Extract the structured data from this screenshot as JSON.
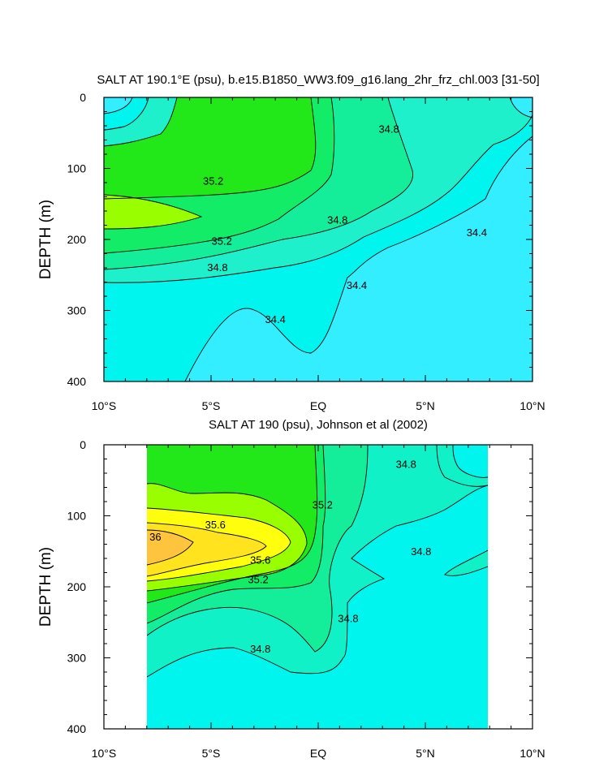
{
  "chart_data": [
    {
      "type": "contour",
      "title": "SALT AT 190.1°E (psu), b.e15.B1850_WW3.f09_g16.lang_2hr_frz_chl.003 [31-50]",
      "ylabel": "DEPTH (m)",
      "xlim": [
        -10,
        10
      ],
      "ylim": [
        0,
        400
      ],
      "y_inverted": true,
      "x_ticks": [
        {
          "value": -10,
          "label": "10°S"
        },
        {
          "value": -5,
          "label": "5°S"
        },
        {
          "value": 0,
          "label": "EQ"
        },
        {
          "value": 5,
          "label": "5°N"
        },
        {
          "value": 10,
          "label": "10°N"
        }
      ],
      "y_ticks": [
        0,
        100,
        200,
        300,
        400
      ],
      "levels": [
        34.4,
        34.6,
        34.8,
        35.0,
        35.2,
        35.4
      ],
      "fill_colors": {
        "below_34.4": "#33eeff",
        "34.4-34.6": "#00f5ee",
        "34.6-34.8": "#1ef0cc",
        "34.8-35.0": "#14ee9a",
        "35.0-35.2": "#12ec66",
        "35.2-35.4": "#22e81a",
        "above_35.4": "#99ff00"
      },
      "contour_labels": [
        {
          "text": "35.2",
          "x": -4.9,
          "y": 118
        },
        {
          "text": "35.2",
          "x": -4.5,
          "y": 203
        },
        {
          "text": "34.8",
          "x": -4.7,
          "y": 240
        },
        {
          "text": "34.8",
          "x": 3.3,
          "y": 45
        },
        {
          "text": "34.8",
          "x": 0.9,
          "y": 173
        },
        {
          "text": "34.4",
          "x": 7.4,
          "y": 191
        },
        {
          "text": "34.4",
          "x": 1.8,
          "y": 265
        },
        {
          "text": "34.4",
          "x": -2.0,
          "y": 313
        }
      ],
      "grid": false
    },
    {
      "type": "contour",
      "title": "SALT AT 190 (psu), Johnson et al (2002)",
      "ylabel": "DEPTH (m)",
      "xlim": [
        -10,
        10
      ],
      "ylim": [
        0,
        400
      ],
      "y_inverted": true,
      "data_extent_x": [
        -8,
        8
      ],
      "x_ticks": [
        {
          "value": -10,
          "label": "10°S"
        },
        {
          "value": -5,
          "label": "5°S"
        },
        {
          "value": 0,
          "label": "EQ"
        },
        {
          "value": 5,
          "label": "5°N"
        },
        {
          "value": 10,
          "label": "10°N"
        }
      ],
      "y_ticks": [
        0,
        100,
        200,
        300,
        400
      ],
      "levels": [
        34.6,
        34.8,
        35.0,
        35.2,
        35.4,
        35.6,
        35.8,
        36.0
      ],
      "fill_colors": {
        "below_34.6": "#00f5ee",
        "34.6-34.8": "#11f1c8",
        "34.8-35.0": "#14ee9a",
        "35.0-35.2": "#12ec66",
        "35.2-35.4": "#22e81a",
        "35.4-35.6": "#99ff00",
        "35.6-35.8": "#ffff0d",
        "35.8-36.0": "#ffe31f",
        "above_36.0": "#ffc43d"
      },
      "contour_labels": [
        {
          "text": "35.6",
          "x": -4.8,
          "y": 113
        },
        {
          "text": "36",
          "x": -7.6,
          "y": 130
        },
        {
          "text": "35.6",
          "x": -2.7,
          "y": 163
        },
        {
          "text": "35.2",
          "x": -2.8,
          "y": 190
        },
        {
          "text": "35.2",
          "x": 0.2,
          "y": 85
        },
        {
          "text": "34.8",
          "x": 4.1,
          "y": 28
        },
        {
          "text": "34.8",
          "x": 4.8,
          "y": 151
        },
        {
          "text": "34.8",
          "x": 1.4,
          "y": 245
        },
        {
          "text": "34.8",
          "x": -2.7,
          "y": 288
        }
      ],
      "grid": false
    }
  ]
}
